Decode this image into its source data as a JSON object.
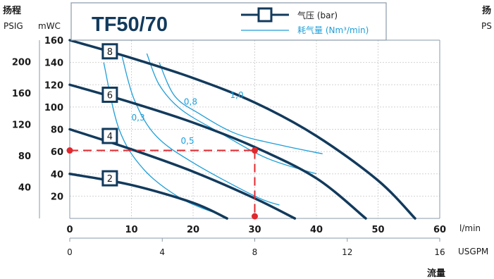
{
  "header": {
    "head_label": "扬程",
    "unit_psig": "PSIG",
    "unit_mwc": "mWC",
    "model": "TF50/70",
    "legend_pressure": "气压 (bar)",
    "legend_air": "耗气量 (Nm³/min)",
    "ghost_head": "扬",
    "ghost_unit": "PS"
  },
  "axes": {
    "flow_label": "流量",
    "unit_lmin": "l/min",
    "unit_usgpm": "USGPM"
  },
  "colors": {
    "curve": "#123a5c",
    "air": "#1e9ed8",
    "operating_point": "#e0282e",
    "grid": "#d2d2d2",
    "frame": "#8a99a8"
  },
  "chart_data": {
    "type": "line",
    "title": "TF50/70",
    "xlabel": "流量",
    "ylabel": "扬程",
    "grid": true,
    "x_lmin": {
      "range": [
        0,
        60
      ],
      "ticks": [
        0,
        10,
        20,
        30,
        40,
        50,
        60
      ]
    },
    "x_usgpm": {
      "range": [
        0,
        16
      ],
      "ticks": [
        0,
        4,
        8,
        12,
        16
      ]
    },
    "y_mwc": {
      "range": [
        0,
        160
      ],
      "ticks": [
        20,
        40,
        60,
        80,
        100,
        120,
        140,
        160
      ]
    },
    "y_psig": {
      "ticks": [
        40,
        80,
        120,
        160,
        200
      ]
    },
    "pressure_curves": [
      {
        "name": "2",
        "x": [
          0,
          10,
          20,
          25.5
        ],
        "y": [
          40,
          30,
          14,
          0
        ],
        "label_at": [
          6.5,
          36
        ]
      },
      {
        "name": "4",
        "x": [
          0,
          10,
          20,
          30,
          36.5
        ],
        "y": [
          80,
          62,
          42,
          18,
          0
        ],
        "label_at": [
          6.5,
          74
        ]
      },
      {
        "name": "6",
        "x": [
          0,
          10,
          20,
          30,
          40,
          48
        ],
        "y": [
          120,
          104,
          86,
          64,
          36,
          0
        ],
        "label_at": [
          6.5,
          111
        ]
      },
      {
        "name": "8",
        "x": [
          0,
          10,
          20,
          30,
          40,
          50,
          56
        ],
        "y": [
          160,
          144,
          126,
          104,
          74,
          34,
          0
        ],
        "label_at": [
          6.5,
          150
        ]
      }
    ],
    "air_curves": [
      {
        "name": "0,3",
        "x": [
          5.5,
          8,
          12,
          18,
          24
        ],
        "y": [
          140,
          80,
          44,
          18,
          4
        ],
        "label_at": [
          10,
          88
        ]
      },
      {
        "name": "0,5",
        "x": [
          8.5,
          10.5,
          14,
          20,
          30,
          34
        ],
        "y": [
          145,
          106,
          74,
          50,
          20,
          12
        ],
        "label_at": [
          18,
          67
        ]
      },
      {
        "name": "0,8",
        "x": [
          12.5,
          14.5,
          18,
          24,
          32,
          40
        ],
        "y": [
          148,
          120,
          98,
          78,
          54,
          40
        ],
        "label_at": [
          18.5,
          102
        ]
      },
      {
        "name": "1,0",
        "x": [
          14.5,
          17,
          21,
          27,
          34,
          41
        ],
        "y": [
          140,
          110,
          94,
          76,
          66,
          58
        ],
        "label_at": [
          26,
          108
        ]
      }
    ],
    "operating_point": {
      "x_lmin": 30,
      "y_mwc": 61
    }
  }
}
